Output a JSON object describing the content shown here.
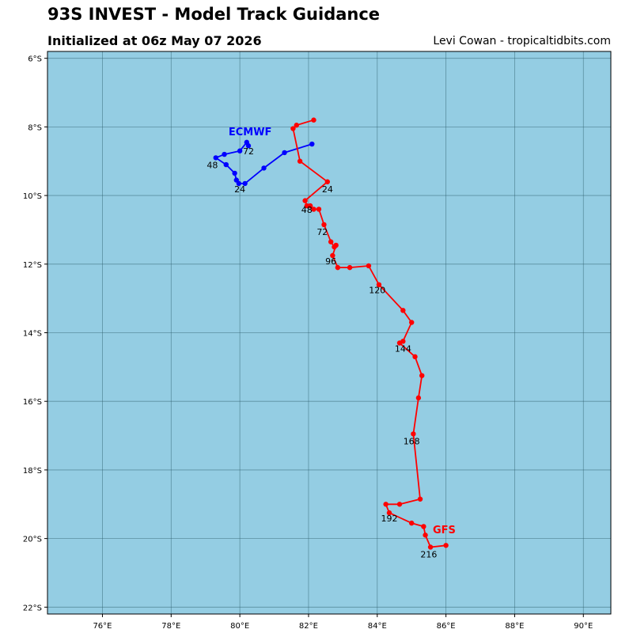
{
  "header": {
    "title": "93S INVEST - Model Track Guidance",
    "subtitle": "Initialized at 06z May 07 2026",
    "credit": "Levi Cowan - tropicaltidbits.com"
  },
  "colors": {
    "ocean": "#94cde3",
    "grid": "#2b5d6c",
    "gfs": "#ff0000",
    "ecmwf": "#0000ff"
  },
  "chart_data": {
    "type": "line",
    "title": "93S INVEST - Model Track Guidance",
    "subtitle": "Initialized at 06z May 07 2026",
    "xlim": [
      74.4,
      90.8
    ],
    "ylim": [
      -22.2,
      -5.8
    ],
    "xticks": [
      76,
      78,
      80,
      82,
      84,
      86,
      88,
      90
    ],
    "xtick_labels": [
      "76°E",
      "78°E",
      "80°E",
      "82°E",
      "84°E",
      "86°E",
      "88°E",
      "90°E"
    ],
    "yticks": [
      -6,
      -8,
      -10,
      -12,
      -14,
      -16,
      -18,
      -20,
      -22
    ],
    "ytick_labels": [
      "6°S",
      "8°S",
      "10°S",
      "12°S",
      "14°S",
      "16°S",
      "18°S",
      "20°S",
      "22°S"
    ],
    "grid": true,
    "series": [
      {
        "name": "ECMWF",
        "color": "#0000ff",
        "points": [
          [
            82.1,
            -8.5
          ],
          [
            81.3,
            -8.75
          ],
          [
            80.7,
            -9.2
          ],
          [
            80.15,
            -9.65
          ],
          [
            79.97,
            -9.65
          ],
          [
            79.9,
            -9.55
          ],
          [
            79.85,
            -9.35
          ],
          [
            79.6,
            -9.1
          ],
          [
            79.3,
            -8.9
          ],
          [
            79.55,
            -8.8
          ],
          [
            80.0,
            -8.7
          ],
          [
            80.2,
            -8.45
          ],
          [
            80.25,
            -8.55
          ]
        ],
        "hour_labels": [
          {
            "text": "24",
            "lon": 80.0,
            "lat": -9.9
          },
          {
            "text": "48",
            "lon": 79.2,
            "lat": -9.2
          },
          {
            "text": "72",
            "lon": 80.25,
            "lat": -8.8
          }
        ],
        "name_label": {
          "lon": 80.3,
          "lat": -8.25
        }
      },
      {
        "name": "GFS",
        "color": "#ff0000",
        "points": [
          [
            82.15,
            -7.8
          ],
          [
            81.65,
            -7.95
          ],
          [
            81.55,
            -8.05
          ],
          [
            81.75,
            -9.0
          ],
          [
            82.55,
            -9.6
          ],
          [
            81.9,
            -10.15
          ],
          [
            81.95,
            -10.3
          ],
          [
            82.05,
            -10.3
          ],
          [
            82.15,
            -10.4
          ],
          [
            82.3,
            -10.4
          ],
          [
            82.45,
            -10.85
          ],
          [
            82.65,
            -11.35
          ],
          [
            82.75,
            -11.5
          ],
          [
            82.8,
            -11.45
          ],
          [
            82.7,
            -11.75
          ],
          [
            82.85,
            -12.1
          ],
          [
            83.2,
            -12.1
          ],
          [
            83.75,
            -12.05
          ],
          [
            84.05,
            -12.6
          ],
          [
            84.75,
            -13.35
          ],
          [
            85.0,
            -13.7
          ],
          [
            84.75,
            -14.25
          ],
          [
            84.65,
            -14.3
          ],
          [
            85.1,
            -14.7
          ],
          [
            85.3,
            -15.25
          ],
          [
            85.2,
            -15.9
          ],
          [
            85.05,
            -16.95
          ],
          [
            85.25,
            -18.85
          ],
          [
            84.65,
            -19.0
          ],
          [
            84.25,
            -19.0
          ],
          [
            84.35,
            -19.25
          ],
          [
            85.0,
            -19.55
          ],
          [
            85.35,
            -19.65
          ],
          [
            85.4,
            -19.9
          ],
          [
            85.55,
            -20.25
          ],
          [
            86.0,
            -20.2
          ]
        ],
        "hour_labels": [
          {
            "text": "24",
            "lon": 82.55,
            "lat": -9.9
          },
          {
            "text": "48",
            "lon": 81.95,
            "lat": -10.5
          },
          {
            "text": "72",
            "lon": 82.4,
            "lat": -11.15
          },
          {
            "text": "96",
            "lon": 82.65,
            "lat": -12.0
          },
          {
            "text": "120",
            "lon": 84.0,
            "lat": -12.85
          },
          {
            "text": "144",
            "lon": 84.75,
            "lat": -14.55
          },
          {
            "text": "168",
            "lon": 85.0,
            "lat": -17.25
          },
          {
            "text": "192",
            "lon": 84.35,
            "lat": -19.5
          },
          {
            "text": "216",
            "lon": 85.5,
            "lat": -20.55
          }
        ],
        "name_label": {
          "lon": 85.95,
          "lat": -19.85
        }
      }
    ]
  }
}
